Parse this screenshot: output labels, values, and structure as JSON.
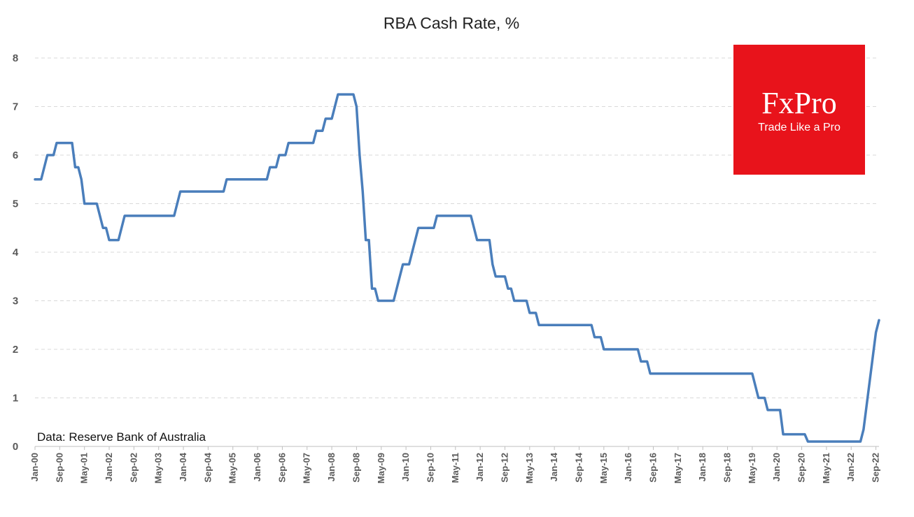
{
  "chart_data": {
    "type": "line",
    "title": "RBA Cash Rate, %",
    "source": "Data: Reserve Bank of Australia",
    "ylim": [
      0,
      8
    ],
    "yticks": [
      0,
      1,
      2,
      3,
      4,
      5,
      6,
      7,
      8
    ],
    "grid": "horizontal dashed",
    "xtick_labels": [
      "Jan-00",
      "Sep-00",
      "May-01",
      "Jan-02",
      "Sep-02",
      "May-03",
      "Jan-04",
      "Sep-04",
      "May-05",
      "Jan-06",
      "Sep-06",
      "May-07",
      "Jan-08",
      "Sep-08",
      "May-09",
      "Jan-10",
      "Sep-10",
      "May-11",
      "Jan-12",
      "Sep-12",
      "May-13",
      "Jan-14",
      "Sep-14",
      "May-15",
      "Jan-16",
      "Sep-16",
      "May-17",
      "Jan-18",
      "Sep-18",
      "May-19",
      "Jan-20",
      "Sep-20",
      "May-21",
      "Jan-22",
      "Sep-22"
    ],
    "series": [
      {
        "color": "#4a7ebb",
        "points": [
          [
            "Jan-00",
            5.5
          ],
          [
            "Feb-00",
            5.5
          ],
          [
            "Mar-00",
            5.5
          ],
          [
            "Apr-00",
            5.75
          ],
          [
            "May-00",
            6.0
          ],
          [
            "Jun-00",
            6.0
          ],
          [
            "Jul-00",
            6.0
          ],
          [
            "Aug-00",
            6.25
          ],
          [
            "Sep-00",
            6.25
          ],
          [
            "Oct-00",
            6.25
          ],
          [
            "Nov-00",
            6.25
          ],
          [
            "Dec-00",
            6.25
          ],
          [
            "Jan-01",
            6.25
          ],
          [
            "Feb-01",
            5.75
          ],
          [
            "Mar-01",
            5.75
          ],
          [
            "Apr-01",
            5.5
          ],
          [
            "May-01",
            5.0
          ],
          [
            "Jun-01",
            5.0
          ],
          [
            "Jul-01",
            5.0
          ],
          [
            "Aug-01",
            5.0
          ],
          [
            "Sep-01",
            5.0
          ],
          [
            "Oct-01",
            4.75
          ],
          [
            "Nov-01",
            4.5
          ],
          [
            "Dec-01",
            4.5
          ],
          [
            "Jan-02",
            4.25
          ],
          [
            "Feb-02",
            4.25
          ],
          [
            "Mar-02",
            4.25
          ],
          [
            "Apr-02",
            4.25
          ],
          [
            "May-02",
            4.5
          ],
          [
            "Jun-02",
            4.75
          ],
          [
            "Jul-02",
            4.75
          ],
          [
            "Aug-02",
            4.75
          ],
          [
            "Sep-02",
            4.75
          ],
          [
            "Oct-02",
            4.75
          ],
          [
            "Nov-02",
            4.75
          ],
          [
            "Dec-02",
            4.75
          ],
          [
            "Jan-03",
            4.75
          ],
          [
            "Feb-03",
            4.75
          ],
          [
            "Mar-03",
            4.75
          ],
          [
            "Apr-03",
            4.75
          ],
          [
            "May-03",
            4.75
          ],
          [
            "Jun-03",
            4.75
          ],
          [
            "Jul-03",
            4.75
          ],
          [
            "Aug-03",
            4.75
          ],
          [
            "Sep-03",
            4.75
          ],
          [
            "Oct-03",
            4.75
          ],
          [
            "Nov-03",
            5.0
          ],
          [
            "Dec-03",
            5.25
          ],
          [
            "Jan-04",
            5.25
          ],
          [
            "Feb-04",
            5.25
          ],
          [
            "Mar-04",
            5.25
          ],
          [
            "Apr-04",
            5.25
          ],
          [
            "May-04",
            5.25
          ],
          [
            "Jun-04",
            5.25
          ],
          [
            "Jul-04",
            5.25
          ],
          [
            "Aug-04",
            5.25
          ],
          [
            "Sep-04",
            5.25
          ],
          [
            "Oct-04",
            5.25
          ],
          [
            "Nov-04",
            5.25
          ],
          [
            "Dec-04",
            5.25
          ],
          [
            "Jan-05",
            5.25
          ],
          [
            "Feb-05",
            5.25
          ],
          [
            "Mar-05",
            5.5
          ],
          [
            "Apr-05",
            5.5
          ],
          [
            "May-05",
            5.5
          ],
          [
            "Jun-05",
            5.5
          ],
          [
            "Jul-05",
            5.5
          ],
          [
            "Aug-05",
            5.5
          ],
          [
            "Sep-05",
            5.5
          ],
          [
            "Oct-05",
            5.5
          ],
          [
            "Nov-05",
            5.5
          ],
          [
            "Dec-05",
            5.5
          ],
          [
            "Jan-06",
            5.5
          ],
          [
            "Feb-06",
            5.5
          ],
          [
            "Mar-06",
            5.5
          ],
          [
            "Apr-06",
            5.5
          ],
          [
            "May-06",
            5.75
          ],
          [
            "Jun-06",
            5.75
          ],
          [
            "Jul-06",
            5.75
          ],
          [
            "Aug-06",
            6.0
          ],
          [
            "Sep-06",
            6.0
          ],
          [
            "Oct-06",
            6.0
          ],
          [
            "Nov-06",
            6.25
          ],
          [
            "Dec-06",
            6.25
          ],
          [
            "Jan-07",
            6.25
          ],
          [
            "Feb-07",
            6.25
          ],
          [
            "Mar-07",
            6.25
          ],
          [
            "Apr-07",
            6.25
          ],
          [
            "May-07",
            6.25
          ],
          [
            "Jun-07",
            6.25
          ],
          [
            "Jul-07",
            6.25
          ],
          [
            "Aug-07",
            6.5
          ],
          [
            "Sep-07",
            6.5
          ],
          [
            "Oct-07",
            6.5
          ],
          [
            "Nov-07",
            6.75
          ],
          [
            "Dec-07",
            6.75
          ],
          [
            "Jan-08",
            6.75
          ],
          [
            "Feb-08",
            7.0
          ],
          [
            "Mar-08",
            7.25
          ],
          [
            "Apr-08",
            7.25
          ],
          [
            "May-08",
            7.25
          ],
          [
            "Jun-08",
            7.25
          ],
          [
            "Jul-08",
            7.25
          ],
          [
            "Aug-08",
            7.25
          ],
          [
            "Sep-08",
            7.0
          ],
          [
            "Oct-08",
            6.0
          ],
          [
            "Nov-08",
            5.25
          ],
          [
            "Dec-08",
            4.25
          ],
          [
            "Jan-09",
            4.25
          ],
          [
            "Feb-09",
            3.25
          ],
          [
            "Mar-09",
            3.25
          ],
          [
            "Apr-09",
            3.0
          ],
          [
            "May-09",
            3.0
          ],
          [
            "Jun-09",
            3.0
          ],
          [
            "Jul-09",
            3.0
          ],
          [
            "Aug-09",
            3.0
          ],
          [
            "Sep-09",
            3.0
          ],
          [
            "Oct-09",
            3.25
          ],
          [
            "Nov-09",
            3.5
          ],
          [
            "Dec-09",
            3.75
          ],
          [
            "Jan-10",
            3.75
          ],
          [
            "Feb-10",
            3.75
          ],
          [
            "Mar-10",
            4.0
          ],
          [
            "Apr-10",
            4.25
          ],
          [
            "May-10",
            4.5
          ],
          [
            "Jun-10",
            4.5
          ],
          [
            "Jul-10",
            4.5
          ],
          [
            "Aug-10",
            4.5
          ],
          [
            "Sep-10",
            4.5
          ],
          [
            "Oct-10",
            4.5
          ],
          [
            "Nov-10",
            4.75
          ],
          [
            "Dec-10",
            4.75
          ],
          [
            "Jan-11",
            4.75
          ],
          [
            "Feb-11",
            4.75
          ],
          [
            "Mar-11",
            4.75
          ],
          [
            "Apr-11",
            4.75
          ],
          [
            "May-11",
            4.75
          ],
          [
            "Jun-11",
            4.75
          ],
          [
            "Jul-11",
            4.75
          ],
          [
            "Aug-11",
            4.75
          ],
          [
            "Sep-11",
            4.75
          ],
          [
            "Oct-11",
            4.75
          ],
          [
            "Nov-11",
            4.5
          ],
          [
            "Dec-11",
            4.25
          ],
          [
            "Jan-12",
            4.25
          ],
          [
            "Feb-12",
            4.25
          ],
          [
            "Mar-12",
            4.25
          ],
          [
            "Apr-12",
            4.25
          ],
          [
            "May-12",
            3.75
          ],
          [
            "Jun-12",
            3.5
          ],
          [
            "Jul-12",
            3.5
          ],
          [
            "Aug-12",
            3.5
          ],
          [
            "Sep-12",
            3.5
          ],
          [
            "Oct-12",
            3.25
          ],
          [
            "Nov-12",
            3.25
          ],
          [
            "Dec-12",
            3.0
          ],
          [
            "Jan-13",
            3.0
          ],
          [
            "Feb-13",
            3.0
          ],
          [
            "Mar-13",
            3.0
          ],
          [
            "Apr-13",
            3.0
          ],
          [
            "May-13",
            2.75
          ],
          [
            "Jun-13",
            2.75
          ],
          [
            "Jul-13",
            2.75
          ],
          [
            "Aug-13",
            2.5
          ],
          [
            "Sep-13",
            2.5
          ],
          [
            "Oct-13",
            2.5
          ],
          [
            "Nov-13",
            2.5
          ],
          [
            "Dec-13",
            2.5
          ],
          [
            "Jan-14",
            2.5
          ],
          [
            "Feb-14",
            2.5
          ],
          [
            "Mar-14",
            2.5
          ],
          [
            "Apr-14",
            2.5
          ],
          [
            "May-14",
            2.5
          ],
          [
            "Jun-14",
            2.5
          ],
          [
            "Jul-14",
            2.5
          ],
          [
            "Aug-14",
            2.5
          ],
          [
            "Sep-14",
            2.5
          ],
          [
            "Oct-14",
            2.5
          ],
          [
            "Nov-14",
            2.5
          ],
          [
            "Dec-14",
            2.5
          ],
          [
            "Jan-15",
            2.5
          ],
          [
            "Feb-15",
            2.25
          ],
          [
            "Mar-15",
            2.25
          ],
          [
            "Apr-15",
            2.25
          ],
          [
            "May-15",
            2.0
          ],
          [
            "Jun-15",
            2.0
          ],
          [
            "Jul-15",
            2.0
          ],
          [
            "Aug-15",
            2.0
          ],
          [
            "Sep-15",
            2.0
          ],
          [
            "Oct-15",
            2.0
          ],
          [
            "Nov-15",
            2.0
          ],
          [
            "Dec-15",
            2.0
          ],
          [
            "Jan-16",
            2.0
          ],
          [
            "Feb-16",
            2.0
          ],
          [
            "Mar-16",
            2.0
          ],
          [
            "Apr-16",
            2.0
          ],
          [
            "May-16",
            1.75
          ],
          [
            "Jun-16",
            1.75
          ],
          [
            "Jul-16",
            1.75
          ],
          [
            "Aug-16",
            1.5
          ],
          [
            "Sep-16",
            1.5
          ],
          [
            "Oct-16",
            1.5
          ],
          [
            "Nov-16",
            1.5
          ],
          [
            "Dec-16",
            1.5
          ],
          [
            "Jan-17",
            1.5
          ],
          [
            "Feb-17",
            1.5
          ],
          [
            "Mar-17",
            1.5
          ],
          [
            "Apr-17",
            1.5
          ],
          [
            "May-17",
            1.5
          ],
          [
            "Jun-17",
            1.5
          ],
          [
            "Jul-17",
            1.5
          ],
          [
            "Aug-17",
            1.5
          ],
          [
            "Sep-17",
            1.5
          ],
          [
            "Oct-17",
            1.5
          ],
          [
            "Nov-17",
            1.5
          ],
          [
            "Dec-17",
            1.5
          ],
          [
            "Jan-18",
            1.5
          ],
          [
            "Feb-18",
            1.5
          ],
          [
            "Mar-18",
            1.5
          ],
          [
            "Apr-18",
            1.5
          ],
          [
            "May-18",
            1.5
          ],
          [
            "Jun-18",
            1.5
          ],
          [
            "Jul-18",
            1.5
          ],
          [
            "Aug-18",
            1.5
          ],
          [
            "Sep-18",
            1.5
          ],
          [
            "Oct-18",
            1.5
          ],
          [
            "Nov-18",
            1.5
          ],
          [
            "Dec-18",
            1.5
          ],
          [
            "Jan-19",
            1.5
          ],
          [
            "Feb-19",
            1.5
          ],
          [
            "Mar-19",
            1.5
          ],
          [
            "Apr-19",
            1.5
          ],
          [
            "May-19",
            1.5
          ],
          [
            "Jun-19",
            1.25
          ],
          [
            "Jul-19",
            1.0
          ],
          [
            "Aug-19",
            1.0
          ],
          [
            "Sep-19",
            1.0
          ],
          [
            "Oct-19",
            0.75
          ],
          [
            "Nov-19",
            0.75
          ],
          [
            "Dec-19",
            0.75
          ],
          [
            "Jan-20",
            0.75
          ],
          [
            "Feb-20",
            0.75
          ],
          [
            "Mar-20",
            0.25
          ],
          [
            "Apr-20",
            0.25
          ],
          [
            "May-20",
            0.25
          ],
          [
            "Jun-20",
            0.25
          ],
          [
            "Jul-20",
            0.25
          ],
          [
            "Aug-20",
            0.25
          ],
          [
            "Sep-20",
            0.25
          ],
          [
            "Oct-20",
            0.25
          ],
          [
            "Nov-20",
            0.1
          ],
          [
            "Dec-20",
            0.1
          ],
          [
            "Jan-21",
            0.1
          ],
          [
            "Feb-21",
            0.1
          ],
          [
            "Mar-21",
            0.1
          ],
          [
            "Apr-21",
            0.1
          ],
          [
            "May-21",
            0.1
          ],
          [
            "Jun-21",
            0.1
          ],
          [
            "Jul-21",
            0.1
          ],
          [
            "Aug-21",
            0.1
          ],
          [
            "Sep-21",
            0.1
          ],
          [
            "Oct-21",
            0.1
          ],
          [
            "Nov-21",
            0.1
          ],
          [
            "Dec-21",
            0.1
          ],
          [
            "Jan-22",
            0.1
          ],
          [
            "Feb-22",
            0.1
          ],
          [
            "Mar-22",
            0.1
          ],
          [
            "Apr-22",
            0.1
          ],
          [
            "May-22",
            0.35
          ],
          [
            "Jun-22",
            0.85
          ],
          [
            "Jul-22",
            1.35
          ],
          [
            "Aug-22",
            1.85
          ],
          [
            "Sep-22",
            2.35
          ],
          [
            "Oct-22",
            2.6
          ]
        ]
      }
    ]
  },
  "logo": {
    "name": "FxPro",
    "tagline": "Trade Like a Pro",
    "bg_color": "#e8131b"
  }
}
